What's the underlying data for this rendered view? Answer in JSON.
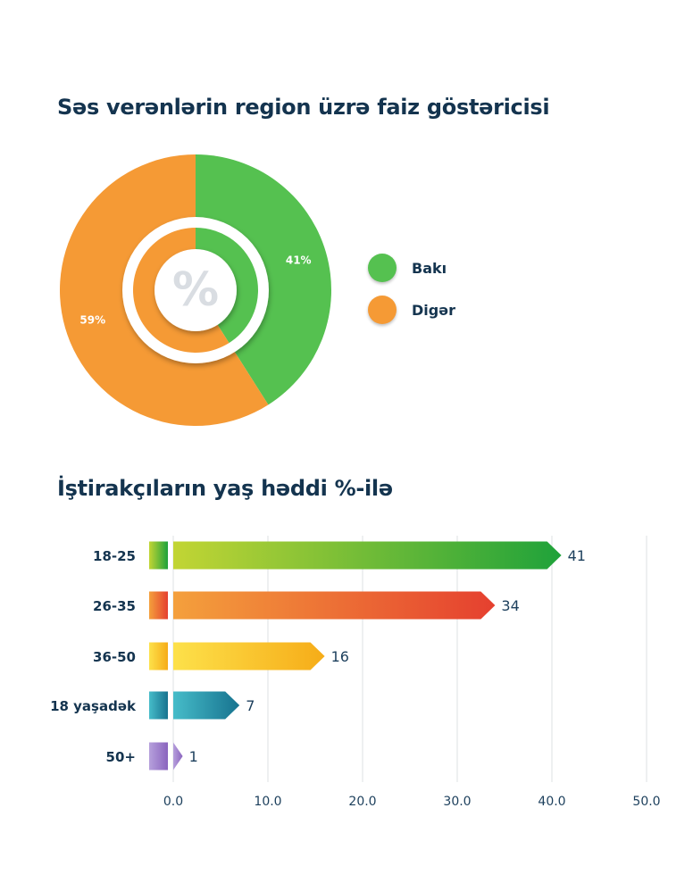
{
  "chart_data": [
    {
      "type": "pie",
      "title": "Səs verənlərin region üzrə faiz göstəricisi",
      "center_symbol": "%",
      "slices": [
        {
          "label": "Bakı",
          "value": 41,
          "display": "41%",
          "color": "#55c150"
        },
        {
          "label": "Digər",
          "value": 59,
          "display": "59%",
          "color": "#f59a35"
        }
      ],
      "legend_position": "right"
    },
    {
      "type": "bar",
      "orientation": "horizontal",
      "title": "İştirakçıların yaş həddi %-ilə",
      "categories": [
        "18-25",
        "26-35",
        "36-50",
        "18 yaşadək",
        "50+"
      ],
      "values": [
        41,
        34,
        16,
        7,
        1
      ],
      "colors": [
        [
          "#c2d534",
          "#1fa23a"
        ],
        [
          "#f4a03c",
          "#e5402f"
        ],
        [
          "#fde14a",
          "#f6ac18"
        ],
        [
          "#46bcc9",
          "#17738f"
        ],
        [
          "#b6a0dc",
          "#8a64be"
        ]
      ],
      "xlim": [
        0,
        50
      ],
      "xticks": [
        "0.0",
        "10.0",
        "20.0",
        "30.0",
        "40.0",
        "50.0"
      ],
      "grid": true
    }
  ]
}
